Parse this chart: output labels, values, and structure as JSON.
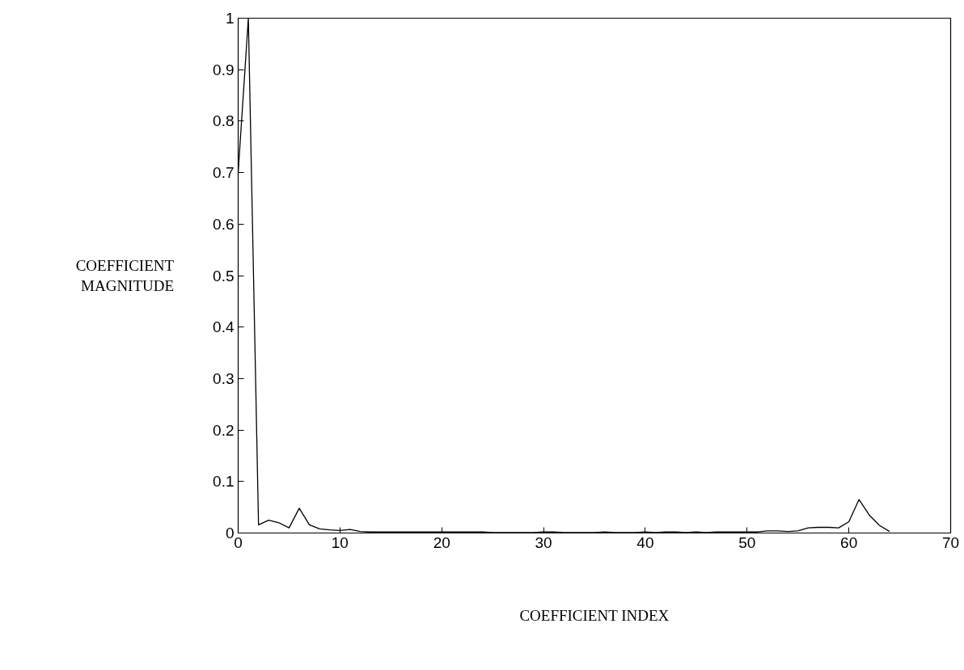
{
  "chart_data": {
    "type": "line",
    "xlabel": "COEFFICIENT INDEX",
    "ylabel": "COEFFICIENT MAGNITUDE",
    "x": [
      0,
      1,
      2,
      3,
      4,
      5,
      6,
      7,
      8,
      9,
      10,
      11,
      12,
      13,
      14,
      15,
      16,
      17,
      18,
      19,
      20,
      21,
      22,
      23,
      24,
      25,
      26,
      27,
      28,
      29,
      30,
      31,
      32,
      33,
      34,
      35,
      36,
      37,
      38,
      39,
      40,
      41,
      42,
      43,
      44,
      45,
      46,
      47,
      48,
      49,
      50,
      51,
      52,
      53,
      54,
      55,
      56,
      57,
      58,
      59,
      60,
      61,
      62,
      63,
      64
    ],
    "series": [
      {
        "color": "#000000",
        "values": [
          0.7,
          1.0,
          0.016,
          0.025,
          0.02,
          0.01,
          0.048,
          0.016,
          0.008,
          0.006,
          0.005,
          0.007,
          0.003,
          0.002,
          0.002,
          0.002,
          0.002,
          0.002,
          0.002,
          0.002,
          0.002,
          0.002,
          0.002,
          0.002,
          0.002,
          0.001,
          0.001,
          0.001,
          0.001,
          0.001,
          0.002,
          0.002,
          0.001,
          0.001,
          0.001,
          0.001,
          0.002,
          0.001,
          0.001,
          0.001,
          0.002,
          0.001,
          0.002,
          0.002,
          0.001,
          0.002,
          0.001,
          0.002,
          0.002,
          0.002,
          0.002,
          0.002,
          0.004,
          0.004,
          0.003,
          0.004,
          0.01,
          0.011,
          0.011,
          0.01,
          0.022,
          0.065,
          0.035,
          0.015,
          0.003
        ]
      }
    ],
    "xlim": [
      0,
      70
    ],
    "ylim": [
      0,
      1
    ],
    "xticks": [
      0,
      10,
      20,
      30,
      40,
      50,
      60,
      70
    ],
    "yticks": [
      0,
      {
        "value": 0.1,
        "label": "0.1"
      },
      {
        "value": 0.2,
        "label": "0.2"
      },
      {
        "value": 0.3,
        "label": "0.3"
      },
      {
        "value": 0.4,
        "label": "0.4"
      },
      {
        "value": 0.5,
        "label": "0.5"
      },
      {
        "value": 0.6,
        "label": "0.6"
      },
      {
        "value": 0.7,
        "label": "0.7"
      },
      {
        "value": 0.8,
        "label": "0.8"
      },
      {
        "value": 0.9,
        "label": "0.9"
      },
      1
    ],
    "grid": false,
    "marker": "none",
    "line_style": "solid"
  }
}
